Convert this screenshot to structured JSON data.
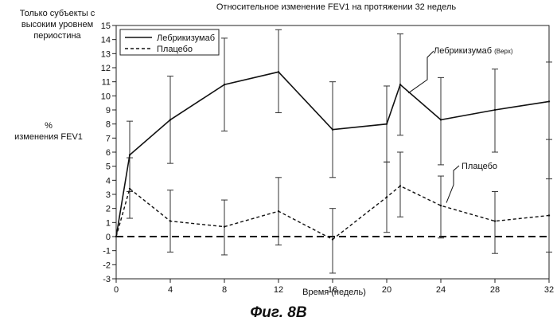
{
  "header": {
    "subset_note": "Только субъекты с\nвысоким уровнем\nпериостина"
  },
  "caption": "Фиг. 8B",
  "chart_data": {
    "type": "line",
    "title": "Относительное изменение FEV1 на протяжении 32 недель",
    "xlabel": "Время (недель)",
    "ylabel": "%\nизменения FEV1",
    "x_ticks": [
      0,
      4,
      8,
      12,
      16,
      20,
      24,
      28,
      32
    ],
    "y_ticks": [
      -3,
      -2,
      -1,
      0,
      1,
      2,
      3,
      4,
      5,
      6,
      7,
      8,
      9,
      10,
      11,
      12,
      13,
      14,
      15
    ],
    "xlim": [
      0,
      32
    ],
    "ylim": [
      -3,
      15
    ],
    "legend_position": "top-left",
    "series": [
      {
        "name": "Лебрикизумаб",
        "line_style": "solid",
        "x": [
          0,
          1,
          4,
          8,
          12,
          16,
          20,
          21,
          24,
          28,
          32
        ],
        "y": [
          0,
          5.8,
          8.3,
          10.8,
          11.7,
          7.6,
          8.0,
          10.8,
          8.3,
          9.0,
          9.6
        ],
        "err_low": [
          null,
          3.2,
          5.2,
          7.5,
          8.8,
          4.2,
          5.3,
          7.2,
          5.1,
          6.0,
          6.9
        ],
        "err_high": [
          null,
          8.2,
          11.4,
          14.1,
          14.7,
          11.0,
          10.7,
          14.4,
          11.3,
          11.9,
          12.4
        ]
      },
      {
        "name": "Плацебо",
        "line_style": "dashed",
        "x": [
          0,
          1,
          4,
          8,
          12,
          16,
          20,
          21,
          24,
          28,
          32
        ],
        "y": [
          0,
          3.4,
          1.1,
          0.7,
          1.8,
          -0.2,
          2.8,
          3.6,
          2.2,
          1.1,
          1.5
        ],
        "err_low": [
          null,
          1.3,
          -1.1,
          -1.3,
          -0.6,
          -2.6,
          0.3,
          1.4,
          -0.1,
          -1.2,
          -1.1
        ],
        "err_high": [
          null,
          5.6,
          3.3,
          2.6,
          4.2,
          2.0,
          5.3,
          6.0,
          4.3,
          3.2,
          4.1
        ]
      }
    ],
    "reference_line": {
      "y": 0,
      "style": "dashed"
    },
    "annotations": [
      {
        "text": "Лебрикизумаб",
        "suffix": "(Верх)",
        "series": "Лебрикизумаб",
        "anchor_x": 21.6,
        "anchor_y": 10.2
      },
      {
        "text": "Плацебо",
        "series": "Плацебо",
        "anchor_x": 25,
        "anchor_y": 2.6
      }
    ]
  }
}
